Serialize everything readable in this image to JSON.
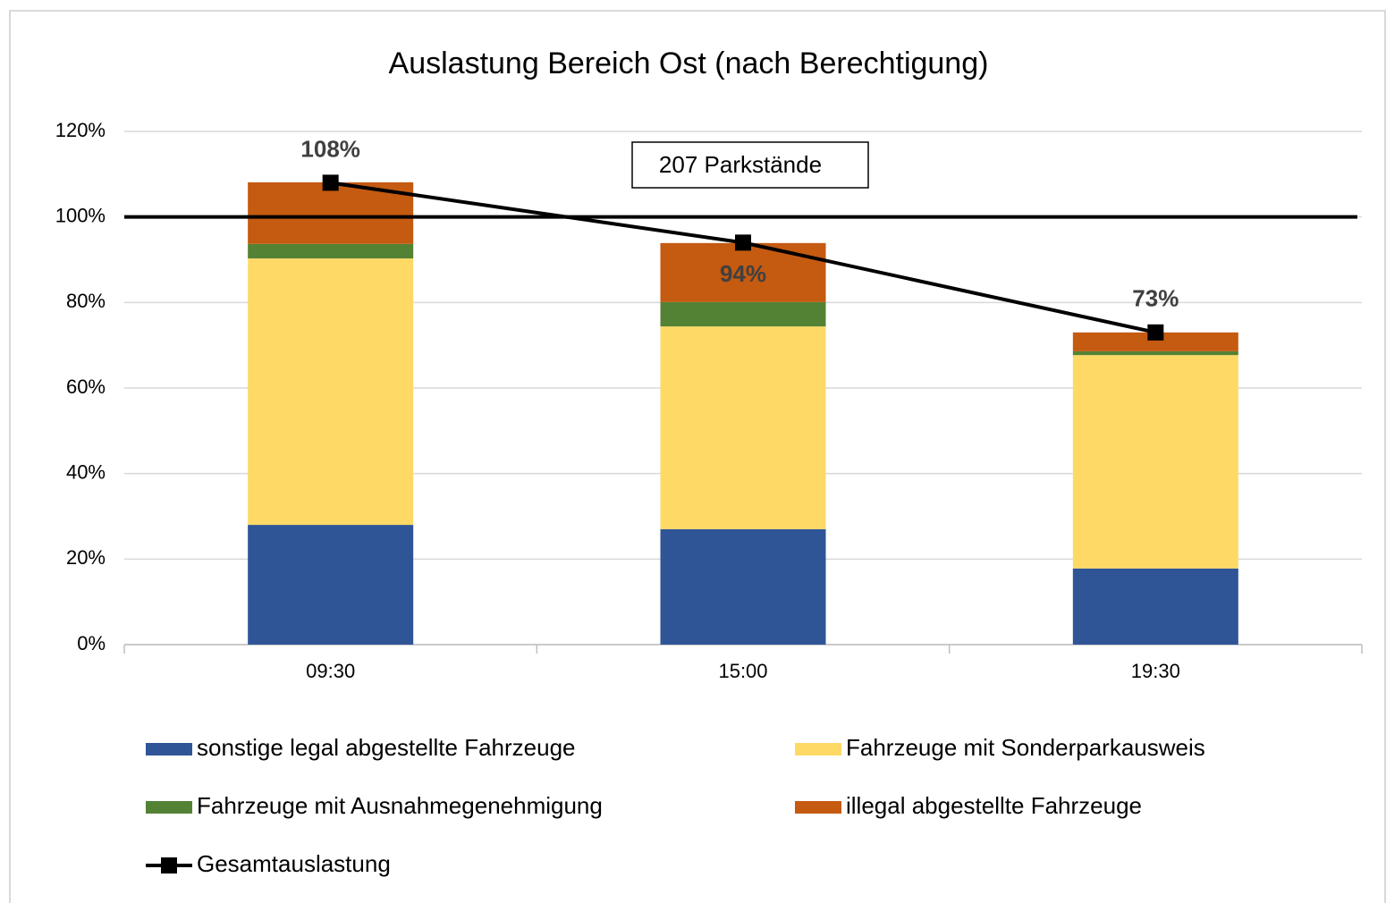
{
  "chart_data": {
    "type": "bar",
    "stacked": true,
    "title": "Auslastung Bereich Ost (nach Berechtigung)",
    "annotation": "207 Parkstände",
    "reference_line": 100,
    "categories": [
      "09:30",
      "15:00",
      "19:30"
    ],
    "series": [
      {
        "name": "sonstige legal abgestellte Fahrzeuge",
        "color": "#2f5597",
        "values": [
          28.0,
          27.0,
          17.8
        ]
      },
      {
        "name": "Fahrzeuge mit Sonderparkausweis",
        "color": "#ffd966",
        "values": [
          62.3,
          47.4,
          49.9
        ]
      },
      {
        "name": "Fahrzeuge mit Ausnahmegenehmigung",
        "color": "#548235",
        "values": [
          3.4,
          5.7,
          0.9
        ]
      },
      {
        "name": "illegal abgestellte Fahrzeuge",
        "color": "#c55a11",
        "values": [
          14.4,
          13.8,
          4.4
        ]
      },
      {
        "name": "Gesamtauslastung",
        "type": "line",
        "color": "#000000",
        "values": [
          108,
          94,
          73
        ],
        "value_labels": [
          "108%",
          "94%",
          "73%"
        ]
      }
    ],
    "ylim": [
      0,
      120
    ],
    "yticks": [
      {
        "value": 0,
        "label": "0%"
      },
      {
        "value": 20,
        "label": "20%"
      },
      {
        "value": 40,
        "label": "40%"
      },
      {
        "value": 60,
        "label": "60%"
      },
      {
        "value": 80,
        "label": "80%"
      },
      {
        "value": 100,
        "label": "100%"
      },
      {
        "value": 120,
        "label": "120%"
      }
    ],
    "grid": true
  }
}
